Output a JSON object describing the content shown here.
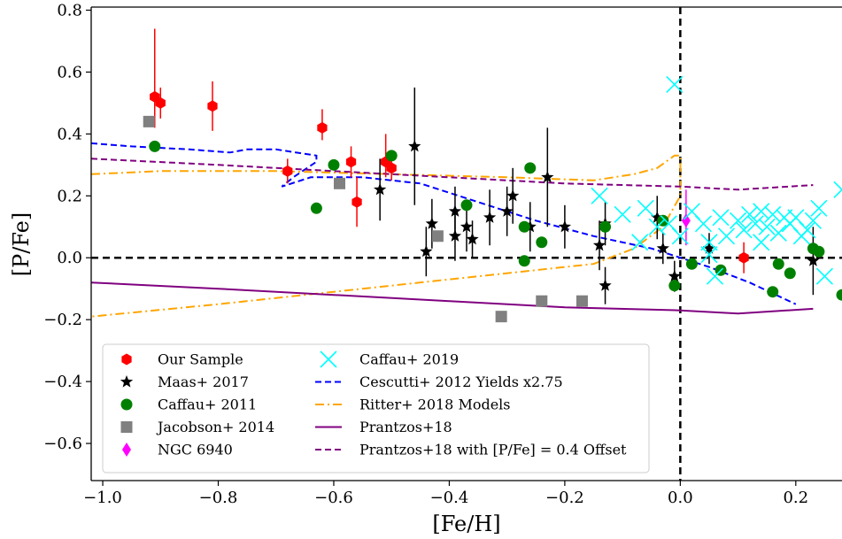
{
  "chart_data": {
    "type": "scatter",
    "xlabel": "[Fe/H]",
    "ylabel": "[P/Fe]",
    "xlim": [
      -1.02,
      0.28
    ],
    "ylim": [
      -0.72,
      0.81
    ],
    "x_ticks": [
      -1.0,
      -0.8,
      -0.6,
      -0.4,
      -0.2,
      0.0,
      0.2
    ],
    "x_tick_labels": [
      "−1.0",
      "−0.8",
      "−0.6",
      "−0.4",
      "−0.2",
      "0.0",
      "0.2"
    ],
    "y_ticks": [
      0.8,
      0.6,
      0.4,
      0.2,
      0.0,
      -0.2,
      -0.4,
      -0.6
    ],
    "y_tick_labels": [
      "0.8",
      "0.6",
      "0.4",
      "0.2",
      "0.0",
      "−0.2",
      "−0.4",
      "−0.6"
    ],
    "reference_lines": [
      {
        "orientation": "horizontal",
        "value": 0.0,
        "style": "dashed",
        "color": "#000000"
      },
      {
        "orientation": "vertical",
        "value": 0.0,
        "style": "dashed",
        "color": "#000000"
      }
    ],
    "legend": {
      "placement": "lower-left",
      "columns": 2
    },
    "series": [
      {
        "name": "Our Sample",
        "kind": "points",
        "marker": "hexagon",
        "color": "#ff0000",
        "points": [
          {
            "x": -0.91,
            "y": 0.52,
            "yerr": [
              0.1,
              0.22
            ]
          },
          {
            "x": -0.9,
            "y": 0.5,
            "yerr": [
              0.05,
              0.05
            ]
          },
          {
            "x": -0.81,
            "y": 0.49,
            "yerr": [
              0.08,
              0.08
            ]
          },
          {
            "x": -0.68,
            "y": 0.28,
            "yerr": [
              0.04,
              0.04
            ]
          },
          {
            "x": -0.62,
            "y": 0.42,
            "yerr": [
              0.04,
              0.06
            ]
          },
          {
            "x": -0.57,
            "y": 0.31,
            "yerr": [
              0.05,
              0.05
            ]
          },
          {
            "x": -0.56,
            "y": 0.18,
            "yerr": [
              0.08,
              0.08
            ]
          },
          {
            "x": -0.51,
            "y": 0.31,
            "yerr": [
              0.05,
              0.09
            ]
          },
          {
            "x": -0.5,
            "y": 0.29,
            "yerr": [
              0.04,
              0.04
            ]
          },
          {
            "x": 0.11,
            "y": 0.0,
            "yerr": [
              0.05,
              0.05
            ]
          }
        ]
      },
      {
        "name": "Maas+ 2017",
        "kind": "points",
        "marker": "star",
        "color": "#000000",
        "points": [
          {
            "x": -0.52,
            "y": 0.22,
            "yerr": [
              0.1,
              0.1
            ]
          },
          {
            "x": -0.46,
            "y": 0.36,
            "yerr": [
              0.19,
              0.19
            ]
          },
          {
            "x": -0.44,
            "y": 0.02,
            "yerr": [
              0.08,
              0.08
            ]
          },
          {
            "x": -0.43,
            "y": 0.11,
            "yerr": [
              0.08,
              0.08
            ]
          },
          {
            "x": -0.39,
            "y": 0.15,
            "yerr": [
              0.08,
              0.08
            ]
          },
          {
            "x": -0.39,
            "y": 0.07,
            "yerr": [
              0.08,
              0.08
            ]
          },
          {
            "x": -0.37,
            "y": 0.1,
            "yerr": [
              0.08,
              0.08
            ]
          },
          {
            "x": -0.36,
            "y": 0.06,
            "yerr": [
              0.06,
              0.06
            ]
          },
          {
            "x": -0.33,
            "y": 0.13,
            "yerr": [
              0.09,
              0.09
            ]
          },
          {
            "x": -0.3,
            "y": 0.15,
            "yerr": [
              0.08,
              0.08
            ]
          },
          {
            "x": -0.29,
            "y": 0.2,
            "yerr": [
              0.09,
              0.09
            ]
          },
          {
            "x": -0.26,
            "y": 0.1,
            "yerr": [
              0.08,
              0.08
            ]
          },
          {
            "x": -0.23,
            "y": 0.26,
            "yerr": [
              0.16,
              0.16
            ]
          },
          {
            "x": -0.2,
            "y": 0.1,
            "yerr": [
              0.07,
              0.07
            ]
          },
          {
            "x": -0.14,
            "y": 0.04,
            "yerr": [
              0.08,
              0.08
            ]
          },
          {
            "x": -0.13,
            "y": 0.11,
            "yerr": [
              0.07,
              0.07
            ]
          },
          {
            "x": -0.13,
            "y": -0.09,
            "yerr": [
              0.06,
              0.06
            ]
          },
          {
            "x": -0.04,
            "y": 0.13,
            "yerr": [
              0.07,
              0.07
            ]
          },
          {
            "x": -0.03,
            "y": 0.03,
            "yerr": [
              0.05,
              0.05
            ]
          },
          {
            "x": -0.01,
            "y": -0.06,
            "yerr": [
              0.05,
              0.05
            ]
          },
          {
            "x": 0.05,
            "y": 0.03,
            "yerr": [
              0.05,
              0.05
            ]
          },
          {
            "x": 0.23,
            "y": -0.01,
            "yerr": [
              0.11,
              0.11
            ]
          }
        ]
      },
      {
        "name": "Caffau+ 2011",
        "kind": "points",
        "marker": "circle",
        "color": "#008000",
        "points": [
          {
            "x": -0.91,
            "y": 0.36
          },
          {
            "x": -0.63,
            "y": 0.16
          },
          {
            "x": -0.6,
            "y": 0.3
          },
          {
            "x": -0.5,
            "y": 0.33
          },
          {
            "x": -0.37,
            "y": 0.17
          },
          {
            "x": -0.27,
            "y": 0.1
          },
          {
            "x": -0.27,
            "y": -0.01
          },
          {
            "x": -0.26,
            "y": 0.29
          },
          {
            "x": -0.24,
            "y": 0.05
          },
          {
            "x": -0.13,
            "y": 0.1
          },
          {
            "x": -0.01,
            "y": -0.09
          },
          {
            "x": 0.02,
            "y": -0.02
          },
          {
            "x": 0.07,
            "y": -0.04
          },
          {
            "x": 0.16,
            "y": -0.11
          },
          {
            "x": 0.17,
            "y": -0.02
          },
          {
            "x": 0.19,
            "y": -0.05
          },
          {
            "x": 0.23,
            "y": 0.03
          },
          {
            "x": 0.24,
            "y": 0.02
          },
          {
            "x": 0.28,
            "y": -0.12
          },
          {
            "x": -0.03,
            "y": 0.12
          }
        ]
      },
      {
        "name": "Jacobson+ 2014",
        "kind": "points",
        "marker": "square",
        "color": "#808080",
        "points": [
          {
            "x": -0.92,
            "y": 0.44
          },
          {
            "x": -0.59,
            "y": 0.24
          },
          {
            "x": -0.42,
            "y": 0.07
          },
          {
            "x": -0.31,
            "y": -0.19
          },
          {
            "x": -0.24,
            "y": -0.14
          },
          {
            "x": -0.17,
            "y": -0.14
          }
        ]
      },
      {
        "name": "NGC 6940",
        "kind": "points",
        "marker": "diamond",
        "color": "#ff00ff",
        "points": [
          {
            "x": 0.01,
            "y": 0.12,
            "yerr": [
              0.08,
              0.1
            ]
          }
        ]
      },
      {
        "name": "Caffau+ 2019",
        "kind": "points",
        "marker": "x",
        "color": "#00ffff",
        "points": [
          {
            "x": -0.14,
            "y": 0.2
          },
          {
            "x": -0.1,
            "y": 0.14
          },
          {
            "x": -0.07,
            "y": 0.05
          },
          {
            "x": -0.06,
            "y": 0.16
          },
          {
            "x": -0.04,
            "y": 0.1
          },
          {
            "x": -0.02,
            "y": 0.11
          },
          {
            "x": -0.01,
            "y": 0.56
          },
          {
            "x": 0.0,
            "y": 0.07
          },
          {
            "x": 0.02,
            "y": 0.15
          },
          {
            "x": 0.04,
            "y": 0.11
          },
          {
            "x": 0.05,
            "y": 0.01
          },
          {
            "x": 0.05,
            "y": 0.05
          },
          {
            "x": 0.06,
            "y": -0.06
          },
          {
            "x": 0.07,
            "y": 0.13
          },
          {
            "x": 0.08,
            "y": 0.07
          },
          {
            "x": 0.1,
            "y": 0.12
          },
          {
            "x": 0.11,
            "y": 0.09
          },
          {
            "x": 0.12,
            "y": 0.14
          },
          {
            "x": 0.13,
            "y": 0.11
          },
          {
            "x": 0.14,
            "y": 0.15
          },
          {
            "x": 0.14,
            "y": 0.05
          },
          {
            "x": 0.15,
            "y": 0.1
          },
          {
            "x": 0.16,
            "y": 0.14
          },
          {
            "x": 0.17,
            "y": 0.08
          },
          {
            "x": 0.18,
            "y": 0.13
          },
          {
            "x": 0.19,
            "y": 0.11
          },
          {
            "x": 0.2,
            "y": 0.13
          },
          {
            "x": 0.21,
            "y": 0.07
          },
          {
            "x": 0.22,
            "y": 0.09
          },
          {
            "x": 0.23,
            "y": 0.12
          },
          {
            "x": 0.24,
            "y": 0.16
          },
          {
            "x": 0.25,
            "y": -0.06
          },
          {
            "x": 0.28,
            "y": 0.22
          }
        ]
      },
      {
        "name": "Cescutti+ 2012 Yields x2.75",
        "kind": "line",
        "style": "dashed",
        "color": "#0000ff",
        "points": [
          {
            "x": -1.02,
            "y": 0.37
          },
          {
            "x": -0.95,
            "y": 0.36
          },
          {
            "x": -0.85,
            "y": 0.35
          },
          {
            "x": -0.78,
            "y": 0.34
          },
          {
            "x": -0.75,
            "y": 0.35
          },
          {
            "x": -0.7,
            "y": 0.35
          },
          {
            "x": -0.63,
            "y": 0.33
          },
          {
            "x": -0.63,
            "y": 0.31
          },
          {
            "x": -0.67,
            "y": 0.26
          },
          {
            "x": -0.69,
            "y": 0.23
          },
          {
            "x": -0.64,
            "y": 0.26
          },
          {
            "x": -0.55,
            "y": 0.26
          },
          {
            "x": -0.45,
            "y": 0.24
          },
          {
            "x": -0.35,
            "y": 0.18
          },
          {
            "x": -0.25,
            "y": 0.12
          },
          {
            "x": -0.15,
            "y": 0.07
          },
          {
            "x": -0.05,
            "y": 0.03
          },
          {
            "x": 0.05,
            "y": -0.03
          },
          {
            "x": 0.12,
            "y": -0.08
          },
          {
            "x": 0.2,
            "y": -0.15
          }
        ]
      },
      {
        "name": "Ritter+ 2018 Models",
        "kind": "line",
        "style": "dashdot",
        "color": "#ffa500",
        "points": [
          {
            "x": -1.02,
            "y": 0.27
          },
          {
            "x": -0.9,
            "y": 0.28
          },
          {
            "x": -0.7,
            "y": 0.28
          },
          {
            "x": -0.5,
            "y": 0.27
          },
          {
            "x": -0.3,
            "y": 0.26
          },
          {
            "x": -0.15,
            "y": 0.25
          },
          {
            "x": -0.08,
            "y": 0.27
          },
          {
            "x": -0.04,
            "y": 0.29
          },
          {
            "x": -0.01,
            "y": 0.33
          },
          {
            "x": 0.0,
            "y": 0.33
          },
          {
            "x": 0.0,
            "y": 0.2
          },
          {
            "x": -0.03,
            "y": 0.1
          },
          {
            "x": -0.08,
            "y": 0.03
          },
          {
            "x": -0.15,
            "y": -0.02
          },
          {
            "x": -0.25,
            "y": -0.04
          },
          {
            "x": -0.4,
            "y": -0.07
          },
          {
            "x": -0.6,
            "y": -0.11
          },
          {
            "x": -0.8,
            "y": -0.15
          },
          {
            "x": -1.02,
            "y": -0.19
          }
        ]
      },
      {
        "name": "Prantzos+18",
        "kind": "line",
        "style": "solid",
        "color": "#800080",
        "points": [
          {
            "x": -1.02,
            "y": -0.08
          },
          {
            "x": -0.8,
            "y": -0.1
          },
          {
            "x": -0.6,
            "y": -0.12
          },
          {
            "x": -0.4,
            "y": -0.14
          },
          {
            "x": -0.2,
            "y": -0.16
          },
          {
            "x": 0.0,
            "y": -0.17
          },
          {
            "x": 0.1,
            "y": -0.18
          },
          {
            "x": 0.23,
            "y": -0.165
          }
        ]
      },
      {
        "name": "Prantzos+18 with [P/Fe] = 0.4 Offset",
        "kind": "line",
        "style": "dashed",
        "color": "#800080",
        "points": [
          {
            "x": -1.02,
            "y": 0.32
          },
          {
            "x": -0.8,
            "y": 0.3
          },
          {
            "x": -0.6,
            "y": 0.28
          },
          {
            "x": -0.4,
            "y": 0.26
          },
          {
            "x": -0.2,
            "y": 0.24
          },
          {
            "x": 0.0,
            "y": 0.23
          },
          {
            "x": 0.1,
            "y": 0.22
          },
          {
            "x": 0.23,
            "y": 0.235
          }
        ]
      }
    ]
  }
}
